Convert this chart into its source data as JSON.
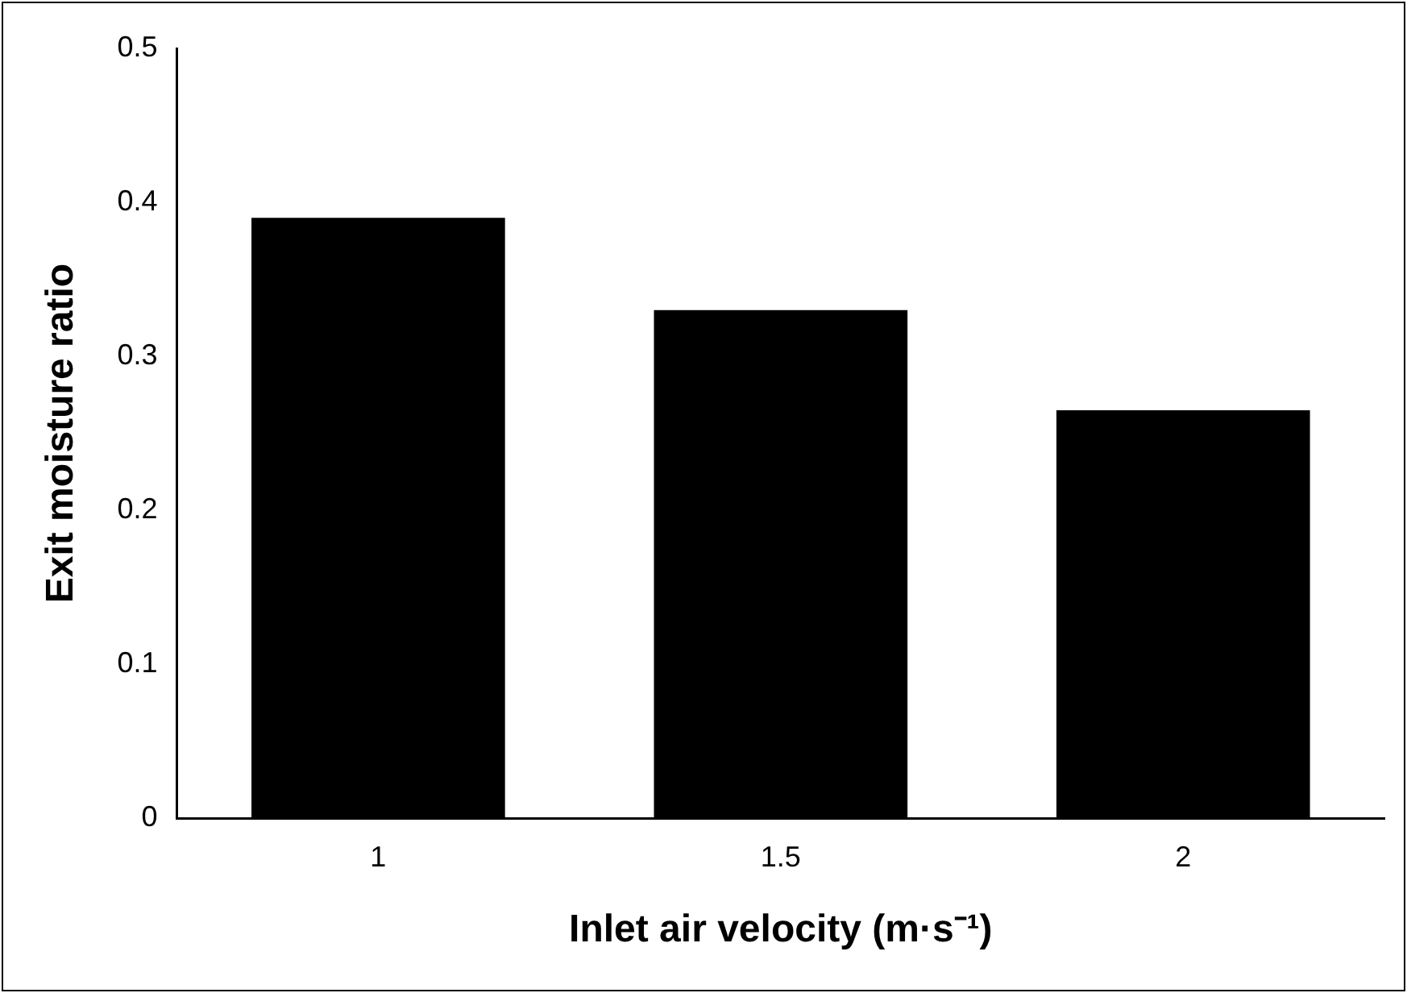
{
  "chart_data": {
    "type": "bar",
    "xlabel": "Inlet air velocity (m·s⁻¹)",
    "ylabel": "Exit moisture ratio",
    "categories": [
      "1",
      "1.5",
      "2"
    ],
    "values": [
      0.39,
      0.33,
      0.265
    ],
    "color": "#000000",
    "ylim": [
      0,
      0.5
    ],
    "yticks": [
      0,
      0.1,
      0.2,
      0.3,
      0.4,
      0.5
    ],
    "grid": false,
    "legend": false
  }
}
